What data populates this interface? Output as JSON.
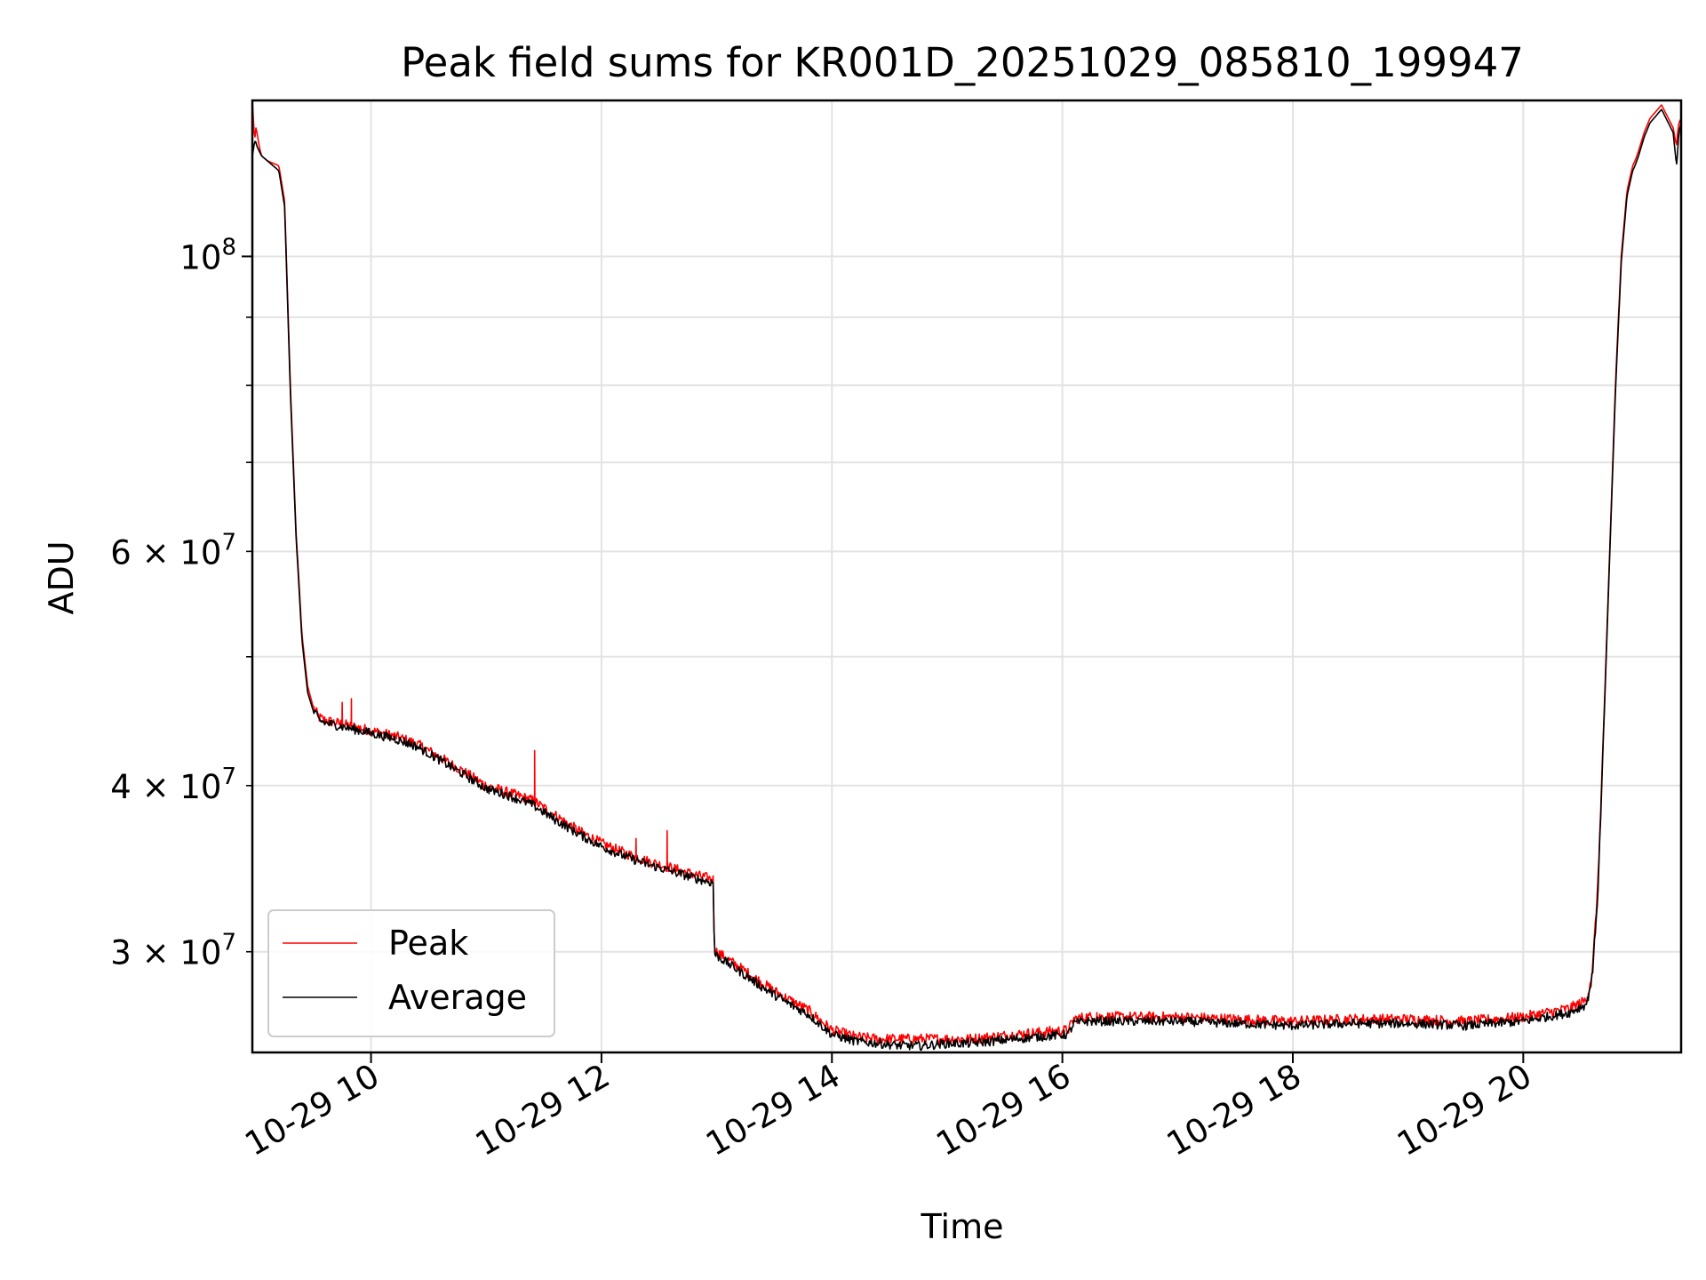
{
  "chart_data": {
    "type": "line",
    "title": "Peak field sums for KR001D_20251029_085810_199947",
    "xlabel": "Time",
    "ylabel": "ADU",
    "yscale": "log",
    "xlim": [
      8.97,
      21.37
    ],
    "ylim": [
      25200000,
      131000000
    ],
    "grid": true,
    "legend_position": "lower-left",
    "x_ticks": [
      {
        "value": 10,
        "label": "10-29 10"
      },
      {
        "value": 12,
        "label": "10-29 12"
      },
      {
        "value": 14,
        "label": "10-29 14"
      },
      {
        "value": 16,
        "label": "10-29 16"
      },
      {
        "value": 18,
        "label": "10-29 18"
      },
      {
        "value": 20,
        "label": "10-29 20"
      }
    ],
    "y_major_ticks": [
      {
        "value": 100000000,
        "base": "10",
        "exp": "8"
      }
    ],
    "y_minor_ticks": [
      {
        "value": 30000000,
        "mant": "3",
        "base": "10",
        "exp": "7"
      },
      {
        "value": 40000000,
        "mant": "4",
        "base": "10",
        "exp": "7"
      },
      {
        "value": 50000000
      },
      {
        "value": 60000000,
        "mant": "6",
        "base": "10",
        "exp": "7"
      },
      {
        "value": 70000000
      },
      {
        "value": 80000000
      },
      {
        "value": 90000000
      }
    ],
    "series": [
      {
        "name": "Peak",
        "color": "#ff0000",
        "noise": 0.009,
        "x": [
          8.97,
          8.99,
          9.0,
          9.01,
          9.03,
          9.05,
          9.1,
          9.2,
          9.25,
          9.3,
          9.35,
          9.4,
          9.45,
          9.5,
          9.55,
          9.6,
          9.65,
          9.7,
          9.8,
          9.9,
          10.0,
          10.2,
          10.4,
          10.6,
          10.8,
          11.0,
          11.2,
          11.4,
          11.6,
          11.8,
          12.0,
          12.2,
          12.4,
          12.6,
          12.8,
          12.97,
          12.98,
          13.0,
          13.2,
          13.4,
          13.6,
          13.8,
          14.0,
          14.2,
          14.4,
          14.6,
          14.8,
          15.0,
          15.2,
          15.4,
          15.6,
          15.8,
          16.05,
          16.1,
          16.2,
          16.5,
          17.0,
          17.5,
          18.0,
          18.5,
          19.0,
          19.5,
          20.0,
          20.2,
          20.4,
          20.55,
          20.6,
          20.65,
          20.7,
          20.75,
          20.8,
          20.85,
          20.9,
          20.95,
          20.97,
          21.0,
          21.05,
          21.1,
          21.2,
          21.3,
          21.33,
          21.34,
          21.35,
          21.37
        ],
        "y": [
          131000000,
          122000000,
          125000000,
          124000000,
          121000000,
          119000000,
          118000000,
          117000000,
          110000000,
          80000000,
          62000000,
          52000000,
          47500000,
          45800000,
          45000000,
          44800000,
          44700000,
          44600000,
          44400000,
          44200000,
          44000000,
          43600000,
          43000000,
          42000000,
          41000000,
          40000000,
          39500000,
          39000000,
          38000000,
          37000000,
          36200000,
          35600000,
          35100000,
          34700000,
          34300000,
          34000000,
          30100000,
          30000000,
          29200000,
          28400000,
          27700000,
          27100000,
          26200000,
          25900000,
          25800000,
          25800000,
          25800000,
          25800000,
          25800000,
          25900000,
          26000000,
          26100000,
          26200000,
          26700000,
          26800000,
          26800000,
          26800000,
          26700000,
          26600000,
          26700000,
          26700000,
          26600000,
          26800000,
          27000000,
          27200000,
          27600000,
          29000000,
          34000000,
          45000000,
          60000000,
          80000000,
          100000000,
          112000000,
          117000000,
          118000000,
          120000000,
          124000000,
          127000000,
          130000000,
          125000000,
          121000000,
          124000000,
          126000000,
          127000000
        ],
        "spikes": [
          {
            "x": 9.75,
            "y": 46200000
          },
          {
            "x": 9.83,
            "y": 46500000
          },
          {
            "x": 11.42,
            "y": 42500000
          },
          {
            "x": 12.3,
            "y": 36500000
          },
          {
            "x": 12.57,
            "y": 37000000
          },
          {
            "x": 16.3,
            "y": 27000000
          }
        ]
      },
      {
        "name": "Average",
        "color": "#000000",
        "noise": 0.008,
        "x": [
          8.97,
          8.99,
          9.0,
          9.01,
          9.03,
          9.05,
          9.1,
          9.2,
          9.25,
          9.3,
          9.35,
          9.4,
          9.45,
          9.5,
          9.55,
          9.6,
          9.65,
          9.7,
          9.8,
          9.9,
          10.0,
          10.2,
          10.4,
          10.6,
          10.8,
          11.0,
          11.2,
          11.4,
          11.6,
          11.8,
          12.0,
          12.2,
          12.4,
          12.6,
          12.8,
          12.97,
          12.98,
          13.0,
          13.2,
          13.4,
          13.6,
          13.8,
          14.0,
          14.2,
          14.4,
          14.6,
          14.8,
          15.0,
          15.2,
          15.4,
          15.6,
          15.8,
          16.05,
          16.1,
          16.2,
          16.5,
          17.0,
          17.5,
          18.0,
          18.5,
          19.0,
          19.5,
          20.0,
          20.2,
          20.4,
          20.55,
          20.6,
          20.65,
          20.7,
          20.75,
          20.8,
          20.85,
          20.9,
          20.95,
          20.97,
          21.0,
          21.05,
          21.1,
          21.2,
          21.3,
          21.33,
          21.34,
          21.35,
          21.37
        ],
        "y": [
          119000000,
          122000000,
          122000000,
          121000000,
          120000000,
          119000000,
          118000000,
          116000000,
          109000000,
          79000000,
          61500000,
          51500000,
          47000000,
          45500000,
          44800000,
          44600000,
          44500000,
          44400000,
          44200000,
          44000000,
          43800000,
          43400000,
          42800000,
          41800000,
          40800000,
          39800000,
          39300000,
          38700000,
          37700000,
          36800000,
          36000000,
          35400000,
          34900000,
          34500000,
          34100000,
          33800000,
          29900000,
          29800000,
          29000000,
          28200000,
          27500000,
          26900000,
          26000000,
          25700000,
          25600000,
          25500000,
          25500000,
          25600000,
          25600000,
          25700000,
          25800000,
          25900000,
          26000000,
          26500000,
          26600000,
          26600000,
          26600000,
          26500000,
          26400000,
          26500000,
          26500000,
          26400000,
          26600000,
          26800000,
          27000000,
          27400000,
          28800000,
          33500000,
          44500000,
          59500000,
          79000000,
          99000000,
          111000000,
          116000000,
          117000000,
          119000000,
          123000000,
          126000000,
          129000000,
          124000000,
          117000000,
          120000000,
          124000000,
          126000000
        ]
      }
    ]
  }
}
